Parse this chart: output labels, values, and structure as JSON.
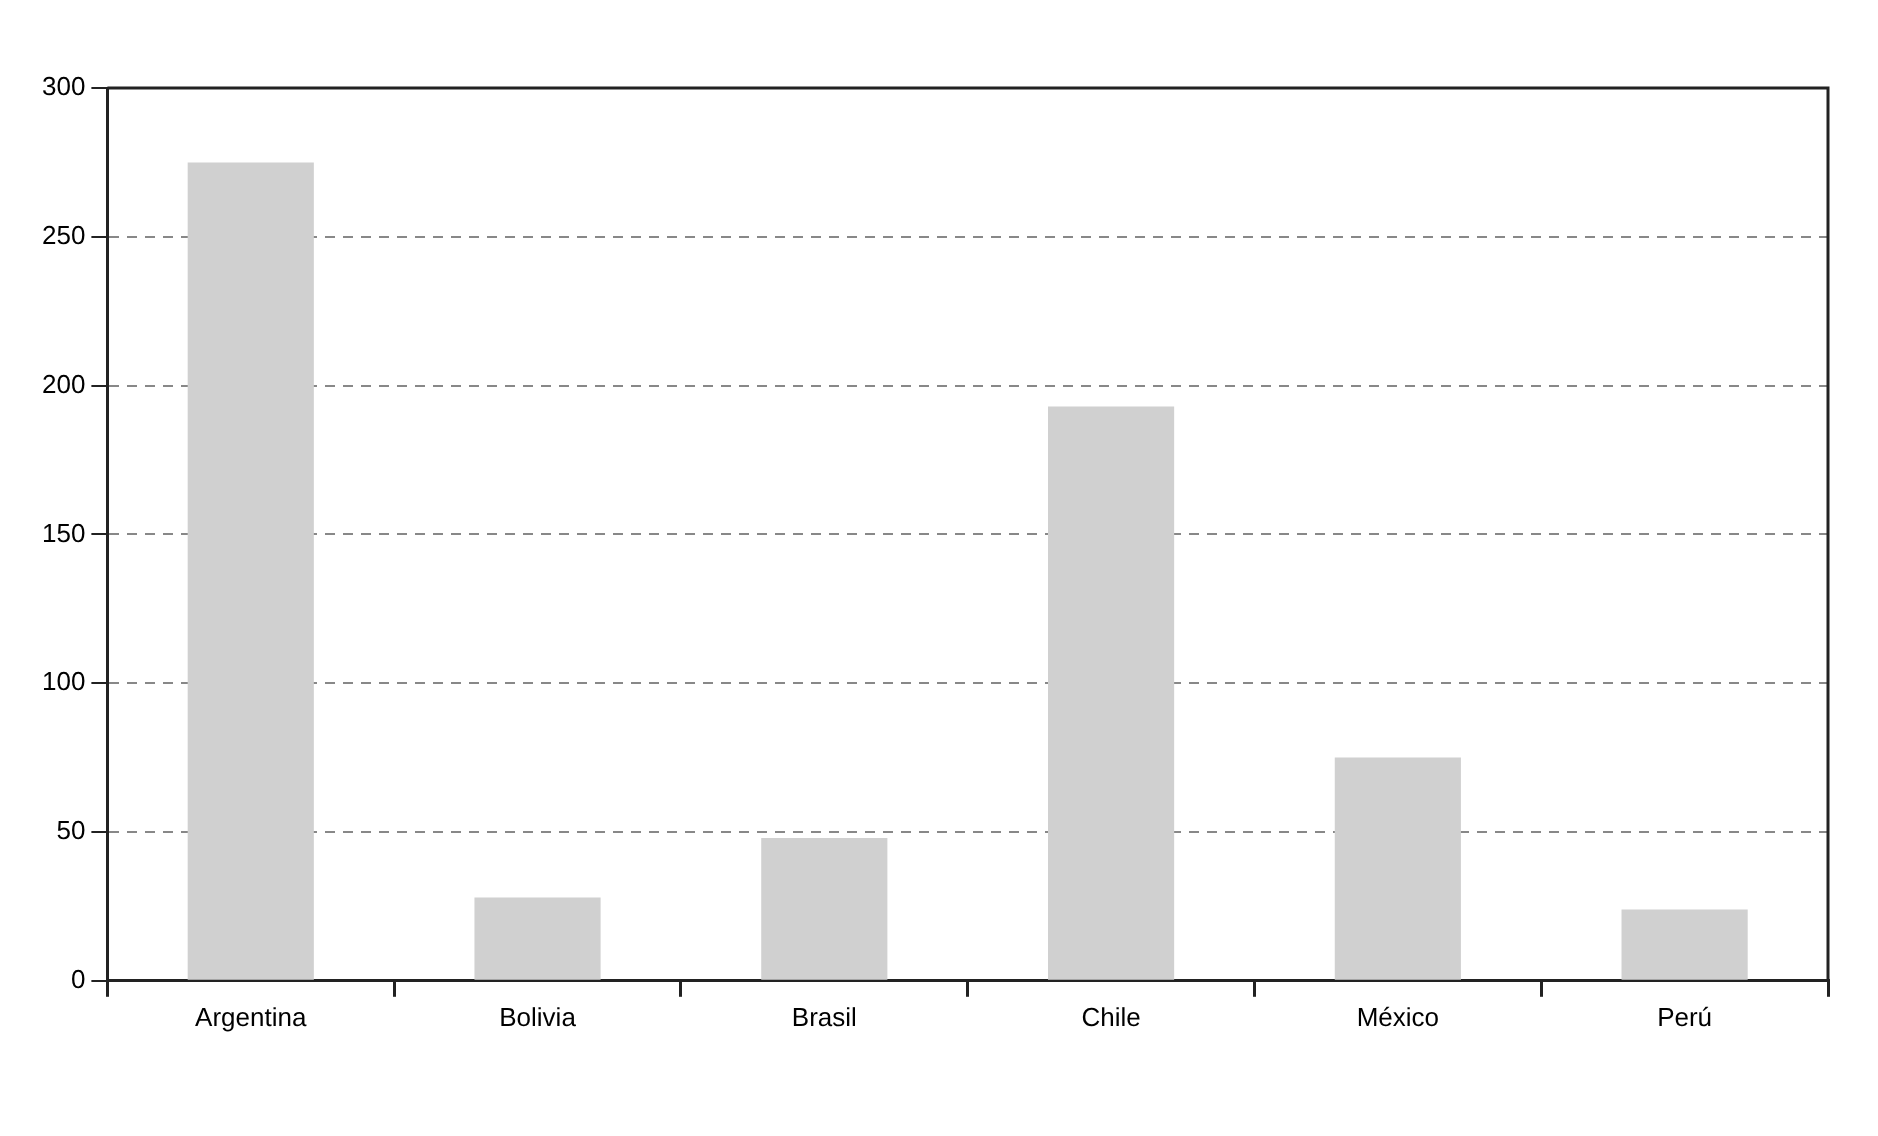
{
  "chart_data": {
    "type": "bar",
    "categories": [
      "Argentina",
      "Bolivia",
      "Brasil",
      "Chile",
      "México",
      "Perú"
    ],
    "values": [
      275,
      28,
      48,
      193,
      75,
      24
    ],
    "color": "#d0d0d0",
    "ylim": [
      0,
      300
    ],
    "yticks": [
      0,
      50,
      100,
      150,
      200,
      250,
      300
    ],
    "grid": "y",
    "legend": false
  }
}
